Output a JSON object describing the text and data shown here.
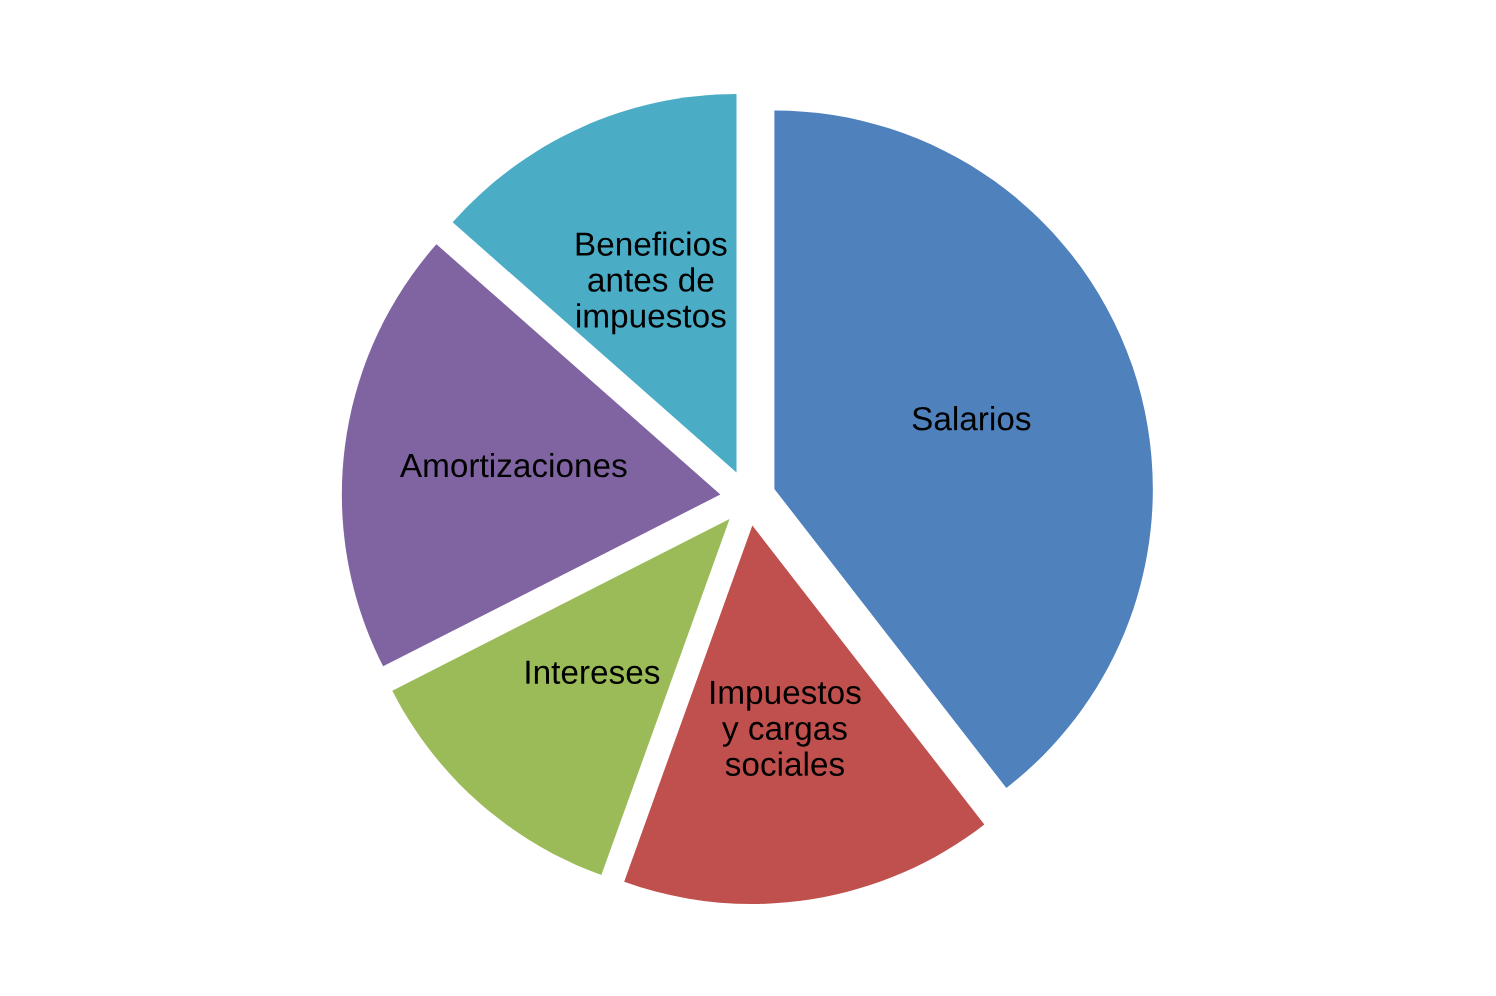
{
  "chart_data": {
    "type": "pie",
    "categories": [
      "Salarios",
      "Impuestos\ny cargas\nsociales",
      "Intereses",
      "Amortizaciones",
      "Beneficios\nantes de\nimpuestos"
    ],
    "values": [
      39.5,
      16,
      12,
      19,
      13.5
    ],
    "colors": [
      "#4f81bd",
      "#c0504d",
      "#9bbb59",
      "#8064a2",
      "#4bacc6"
    ]
  }
}
